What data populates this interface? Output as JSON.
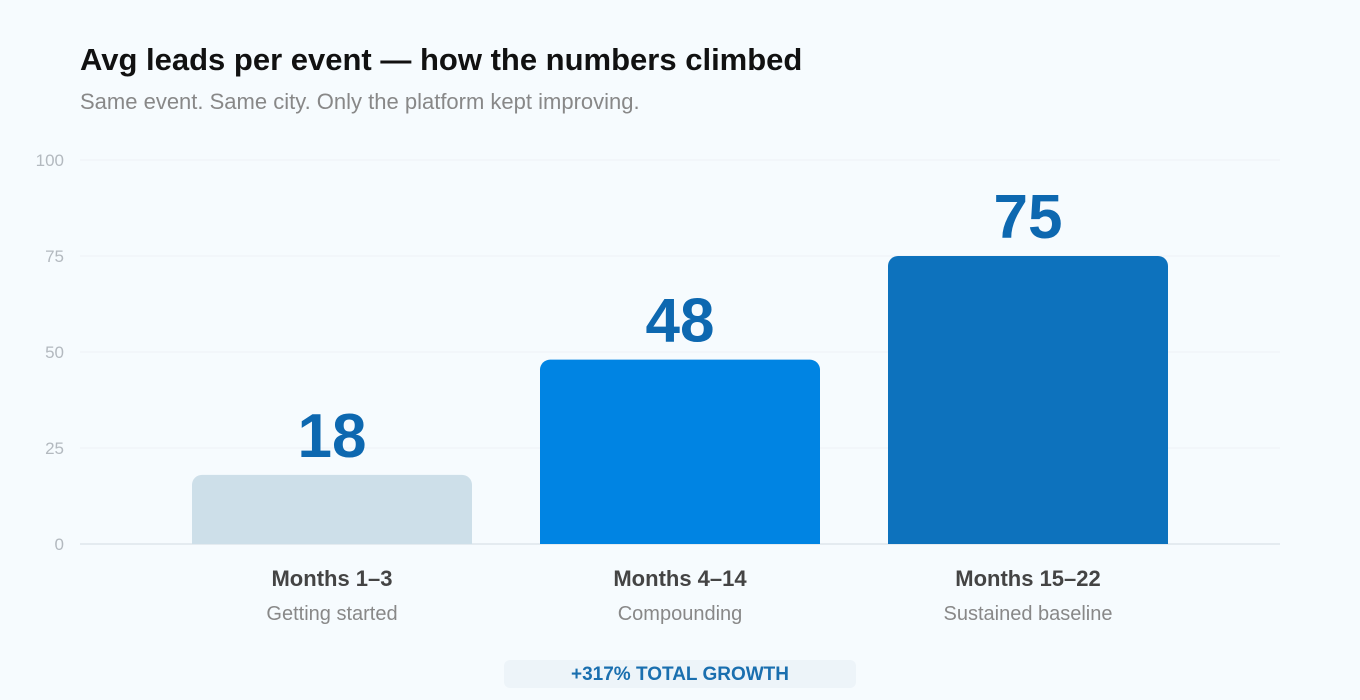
{
  "chart_data": {
    "type": "bar",
    "title": "Avg leads per event — how the numbers climbed",
    "subtitle": "Same event. Same city. Only the platform kept improving.",
    "categories": [
      "Months 1–3",
      "Months 4–14",
      "Months 15–22"
    ],
    "category_sublabels": [
      "Getting started",
      "Compounding",
      "Sustained baseline"
    ],
    "values": [
      18,
      48,
      75
    ],
    "bar_colors": [
      "#cddfe9",
      "#0084e3",
      "#0d72bd"
    ],
    "value_label_color": "#0d68b0",
    "yticks": [
      0,
      25,
      50,
      75,
      100
    ],
    "ylim": [
      0,
      100
    ],
    "grid": true,
    "xlabel": "",
    "ylabel": ""
  },
  "footer": {
    "badge": "+317% TOTAL GROWTH"
  }
}
